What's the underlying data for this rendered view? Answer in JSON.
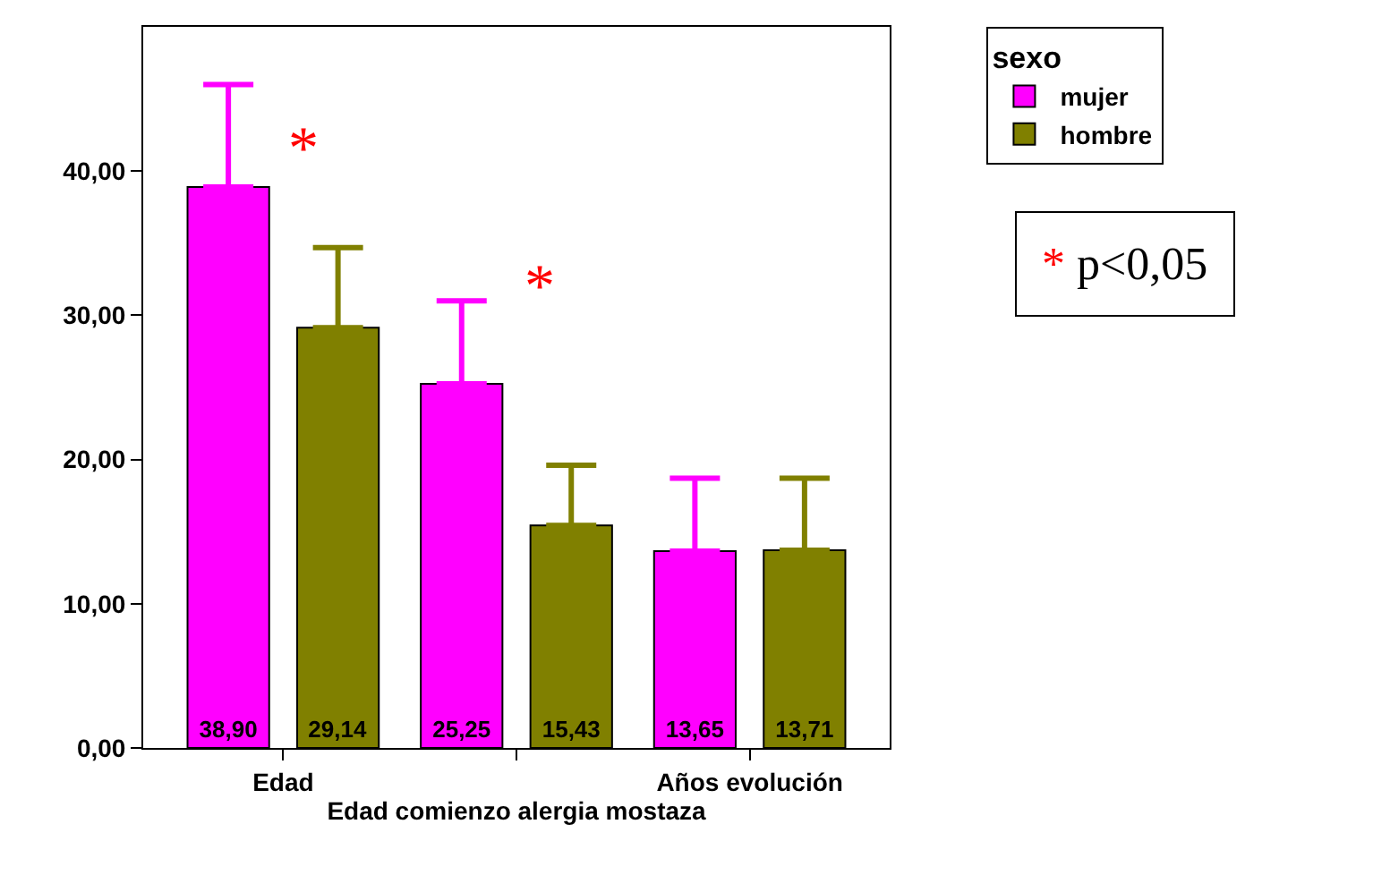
{
  "chart_data": {
    "type": "bar",
    "categories": [
      "Edad",
      null,
      "Años evolución"
    ],
    "xlabel": "Edad comienzo alergia mostaza",
    "series": [
      {
        "name": "mujer",
        "color": "#ff00ff",
        "values": [
          38.9,
          25.25,
          13.65
        ],
        "value_labels": [
          "38,90",
          "25,25",
          "13,65"
        ],
        "errors": [
          [
            38.9,
            46.0
          ],
          [
            25.25,
            31.0
          ],
          [
            13.65,
            18.7
          ]
        ]
      },
      {
        "name": "hombre",
        "color": "#808000",
        "values": [
          29.14,
          15.43,
          13.71
        ],
        "value_labels": [
          "29,14",
          "15,43",
          "13,71"
        ],
        "errors": [
          [
            29.14,
            34.7
          ],
          [
            15.43,
            19.6
          ],
          [
            13.71,
            18.7
          ]
        ]
      }
    ],
    "legend_title": "sexo",
    "legend": "top right",
    "ylim": [
      0,
      50
    ],
    "yticks": [
      {
        "value": 0,
        "label": "0,00"
      },
      {
        "value": 10,
        "label": "10,00"
      },
      {
        "value": 20,
        "label": "20,00"
      },
      {
        "value": 30,
        "label": "30,00"
      },
      {
        "value": 40,
        "label": "40,00"
      }
    ],
    "grid": false,
    "annotations": [
      "*",
      "*",
      "* p<0,05"
    ]
  }
}
